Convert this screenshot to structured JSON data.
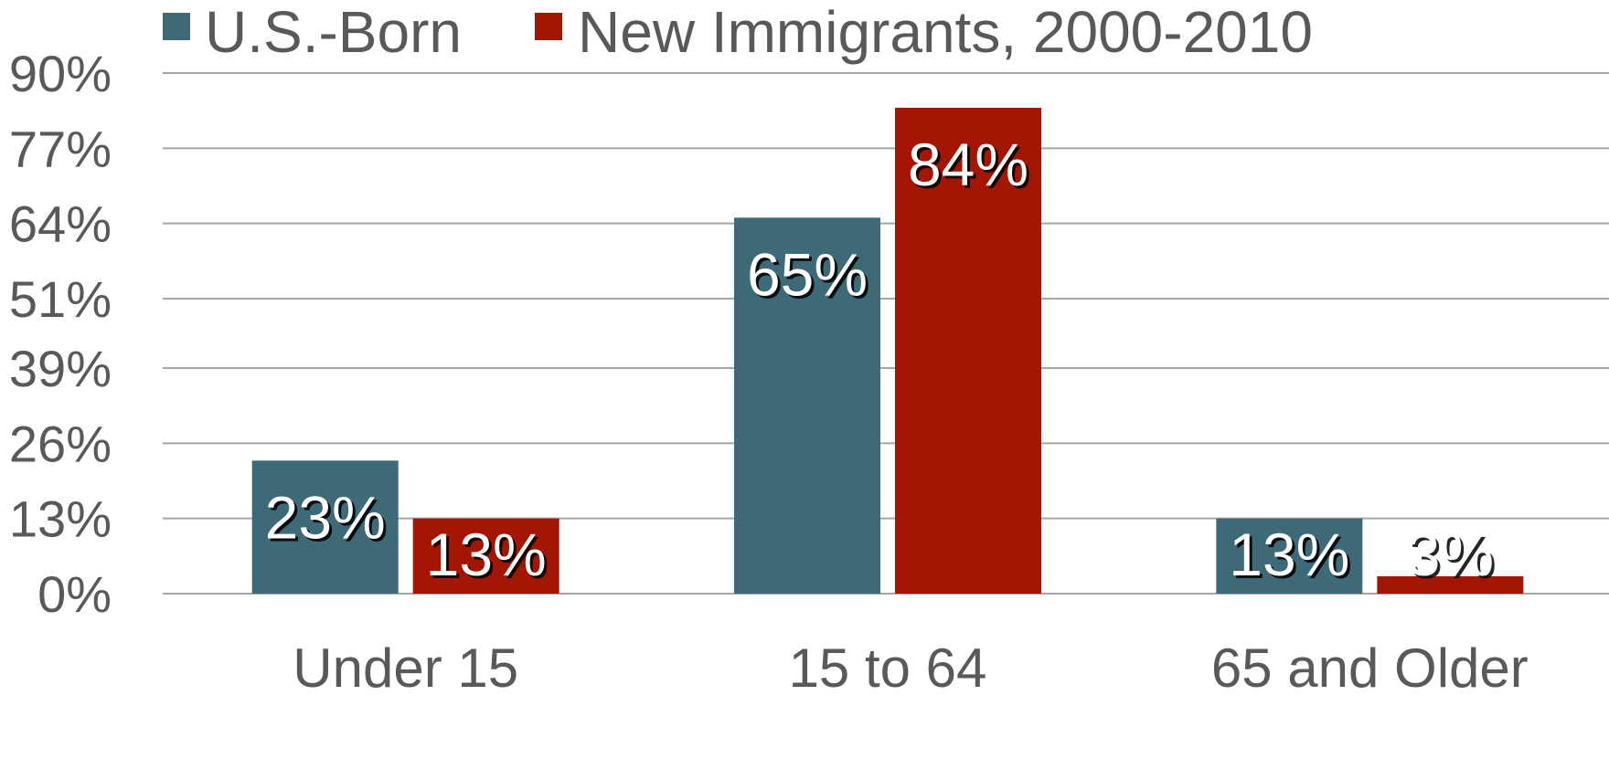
{
  "chart_data": {
    "type": "bar",
    "categories": [
      "Under 15",
      "15 to 64",
      "65 and Older"
    ],
    "series": [
      {
        "name": "U.S.-Born",
        "color": "#3d6a76",
        "values": [
          23,
          65,
          13
        ],
        "labels": [
          "23%",
          "65%",
          "13%"
        ]
      },
      {
        "name": "New Immigrants, 2000-2010",
        "color": "#a31604",
        "values": [
          13,
          84,
          3
        ],
        "labels": [
          "13%",
          "84%",
          "3%"
        ]
      }
    ],
    "y_ticks": [
      {
        "value": 0,
        "label": "0%"
      },
      {
        "value": 13,
        "label": "13%"
      },
      {
        "value": 26,
        "label": "26%"
      },
      {
        "value": 39,
        "label": "39%"
      },
      {
        "value": 51,
        "label": "51%"
      },
      {
        "value": 64,
        "label": "64%"
      },
      {
        "value": 77,
        "label": "77%"
      },
      {
        "value": 90,
        "label": "90%"
      }
    ],
    "ylim": [
      0,
      90
    ],
    "grid": true,
    "gridline_color": "#a6a6a6",
    "legend_position": "top",
    "xlabel": "",
    "ylabel": ""
  }
}
